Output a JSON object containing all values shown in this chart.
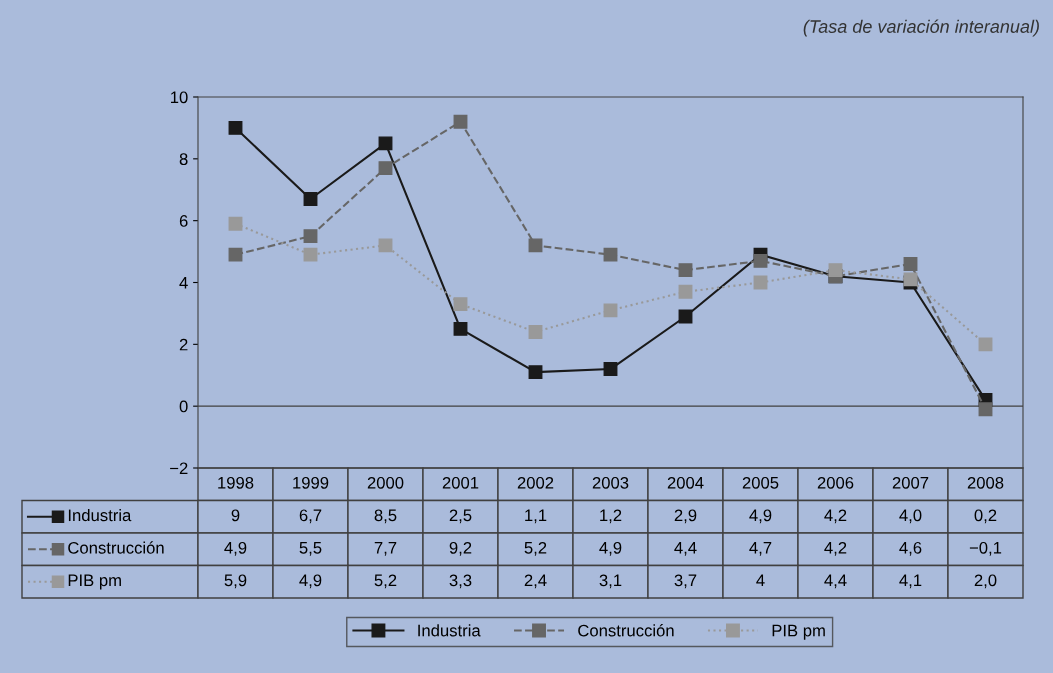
{
  "chart_data": {
    "type": "line",
    "annotations": [
      "(Tasa de variación interanual)"
    ],
    "categories": [
      "1998",
      "1999",
      "2000",
      "2001",
      "2002",
      "2003",
      "2004",
      "2005",
      "2006",
      "2007",
      "2008"
    ],
    "series": [
      {
        "name": "Industria",
        "color": "#1a1a1a",
        "line_style": "solid",
        "values": [
          9,
          6.7,
          8.5,
          2.5,
          1.1,
          1.2,
          2.9,
          4.9,
          4.2,
          4.0,
          0.2
        ],
        "value_labels": [
          "9",
          "6,7",
          "8,5",
          "2,5",
          "1,1",
          "1,2",
          "2,9",
          "4,9",
          "4,2",
          "4,0",
          "0,2"
        ]
      },
      {
        "name": "Construcción",
        "color": "#666666",
        "line_style": "dashed",
        "values": [
          4.9,
          5.5,
          7.7,
          9.2,
          5.2,
          4.9,
          4.4,
          4.7,
          4.2,
          4.6,
          -0.1
        ],
        "value_labels": [
          "4,9",
          "5,5",
          "7,7",
          "9,2",
          "5,2",
          "4,9",
          "4,4",
          "4,7",
          "4,2",
          "4,6",
          "−0,1"
        ]
      },
      {
        "name": "PIB pm",
        "color": "#999999",
        "line_style": "dotted",
        "values": [
          5.9,
          4.9,
          5.2,
          3.3,
          2.4,
          3.1,
          3.7,
          4,
          4.4,
          4.1,
          2.0
        ],
        "value_labels": [
          "5,9",
          "4,9",
          "5,2",
          "3,3",
          "2,4",
          "3,1",
          "3,7",
          "4",
          "4,4",
          "4,1",
          "2,0"
        ]
      }
    ],
    "marker": "square",
    "ylim": [
      -2,
      10
    ],
    "yticks": [
      {
        "value": -2,
        "label": "−2"
      },
      0,
      2,
      4,
      6,
      8,
      10
    ],
    "ref_lines": [
      {
        "axis": "y",
        "value": 0,
        "color": "#404040"
      }
    ],
    "grid": false,
    "legend": "bottom"
  }
}
